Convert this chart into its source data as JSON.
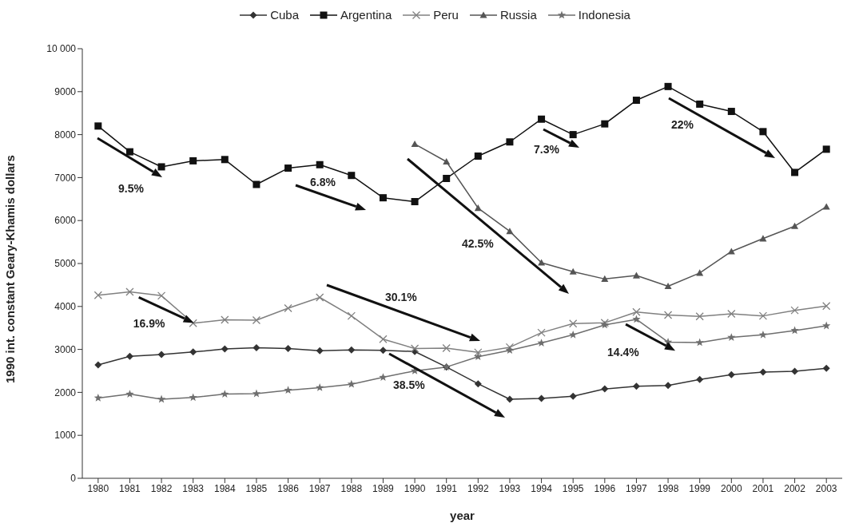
{
  "chart_data": {
    "type": "line",
    "xlabel": "year",
    "ylabel": "1990 int. constant Geary-Khamis dollars",
    "categories": [
      "1980",
      "1981",
      "1982",
      "1983",
      "1984",
      "1985",
      "1986",
      "1987",
      "1988",
      "1989",
      "1990",
      "1991",
      "1992",
      "1993",
      "1994",
      "1995",
      "1996",
      "1997",
      "1998",
      "1999",
      "2000",
      "2001",
      "2002",
      "2003"
    ],
    "series": [
      {
        "name": "Cuba",
        "color": "#333333",
        "marker": "diamond",
        "values": [
          2640,
          2840,
          2880,
          2940,
          3010,
          3040,
          3020,
          2970,
          2990,
          2980,
          2950,
          2590,
          2200,
          1840,
          1860,
          1910,
          2080,
          2140,
          2160,
          2300,
          2410,
          2470,
          2490,
          2560
        ]
      },
      {
        "name": "Argentina",
        "color": "#111111",
        "marker": "square",
        "values": [
          8200,
          7600,
          7250,
          7390,
          7420,
          6840,
          7220,
          7300,
          7050,
          6530,
          6440,
          6980,
          7500,
          7830,
          8360,
          8000,
          8250,
          8800,
          9120,
          8710,
          8540,
          8070,
          7120,
          7660
        ]
      },
      {
        "name": "Peru",
        "color": "#808080",
        "marker": "cross",
        "values": [
          4260,
          4340,
          4250,
          3610,
          3690,
          3680,
          3960,
          4210,
          3780,
          3240,
          3020,
          3030,
          2930,
          3050,
          3390,
          3600,
          3620,
          3870,
          3800,
          3770,
          3830,
          3780,
          3910,
          4010
        ]
      },
      {
        "name": "Russia",
        "color": "#555555",
        "marker": "triangle",
        "values": [
          null,
          null,
          null,
          null,
          null,
          null,
          null,
          null,
          null,
          null,
          7780,
          7370,
          6290,
          5750,
          5020,
          4810,
          4640,
          4720,
          4470,
          4780,
          5280,
          5580,
          5870,
          6320
        ]
      },
      {
        "name": "Indonesia",
        "color": "#6e6e6e",
        "marker": "star",
        "values": [
          1870,
          1960,
          1840,
          1880,
          1960,
          1970,
          2050,
          2110,
          2190,
          2350,
          2500,
          2590,
          2830,
          2980,
          3150,
          3340,
          3570,
          3700,
          3170,
          3160,
          3280,
          3340,
          3440,
          3550
        ]
      }
    ],
    "ylim": [
      0,
      10000
    ],
    "yticks": [
      0,
      1000,
      2000,
      3000,
      4000,
      5000,
      6000,
      7000,
      8000,
      9000,
      {
        "value": 10000,
        "label": "10 000"
      }
    ],
    "grid": false,
    "legend": "top",
    "line_style": "solid",
    "annotations": [
      "9.5%",
      "6.8%",
      {
        "text": "16.9%",
        "x": "1983",
        "y": 3610
      },
      "30.1%",
      "42.5%",
      "38.5%",
      "7.3%",
      "22%",
      {
        "text": "14.4%",
        "x": "1998",
        "y": 3170
      }
    ]
  }
}
